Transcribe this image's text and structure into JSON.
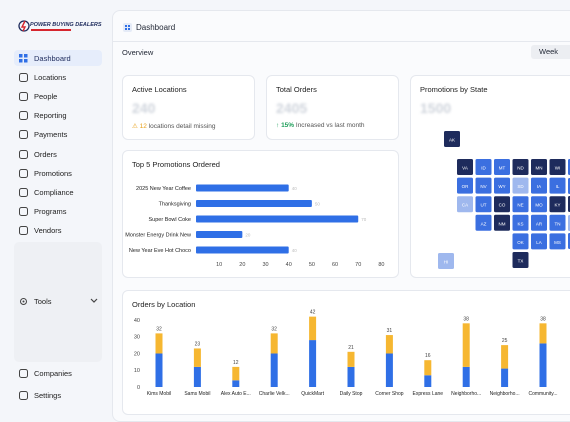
{
  "sidebar": {
    "logo": "POWER BUYING DEALERS",
    "nav": [
      "Dashboard",
      "Locations",
      "People",
      "Reporting",
      "Payments",
      "Orders",
      "Promotions",
      "Compliance",
      "Programs",
      "Vendors"
    ],
    "tools": "Tools",
    "footer": [
      "Companies",
      "Settings"
    ]
  },
  "header": {
    "title": "Dashboard",
    "section": "Overview",
    "period": "Week"
  },
  "cards": [
    {
      "title": "Active Locations",
      "value": "240",
      "note_value": "12",
      "note": "locations detail missing"
    },
    {
      "title": "Total Orders",
      "value": "2405",
      "note_value": "15%",
      "note": "Increased vs last month"
    }
  ],
  "promotions_by_state": {
    "title": "Promotions by State",
    "value": "1500",
    "tiles": [
      {
        "label": "AK",
        "color": "#1e2b5c"
      },
      {
        "label": "VA",
        "color": "#1e2b5c"
      },
      {
        "label": "ID",
        "color": "#3b6fe0"
      },
      {
        "label": "MT",
        "color": "#3b6fe0"
      },
      {
        "label": "ND",
        "color": "#1e2b5c"
      },
      {
        "label": "MN",
        "color": "#1e2b5c"
      },
      {
        "label": "WI",
        "color": "#1e2b5c"
      },
      {
        "label": "OR",
        "color": "#3b6fe0"
      },
      {
        "label": "NV",
        "color": "#3b6fe0"
      },
      {
        "label": "WY",
        "color": "#3b6fe0"
      },
      {
        "label": "SD",
        "color": "#9fb8ee"
      },
      {
        "label": "IA",
        "color": "#3b6fe0"
      },
      {
        "label": "IL",
        "color": "#3b6fe0"
      },
      {
        "label": "CA",
        "color": "#9fb8ee"
      },
      {
        "label": "UT",
        "color": "#3b6fe0"
      },
      {
        "label": "CO",
        "color": "#1e2b5c"
      },
      {
        "label": "NE",
        "color": "#3b6fe0"
      },
      {
        "label": "MO",
        "color": "#3b6fe0"
      },
      {
        "label": "KY",
        "color": "#1e2b5c"
      },
      {
        "label": "AZ",
        "color": "#3b6fe0"
      },
      {
        "label": "NM",
        "color": "#1e2b5c"
      },
      {
        "label": "KS",
        "color": "#3b6fe0"
      },
      {
        "label": "AR",
        "color": "#3b6fe0"
      },
      {
        "label": "TN",
        "color": "#3b6fe0"
      },
      {
        "label": "OK",
        "color": "#3b6fe0"
      },
      {
        "label": "LA",
        "color": "#3b6fe0"
      },
      {
        "label": "MS",
        "color": "#3b6fe0"
      },
      {
        "label": "HI",
        "color": "#9fb8ee"
      },
      {
        "label": "TX",
        "color": "#1e2b5c"
      }
    ]
  },
  "top_promotions": {
    "type": "bar",
    "orientation": "horizontal",
    "title": "Top 5 Promotions Ordered",
    "categories": [
      "2025 New Year Coffee",
      "Thanksgiving",
      "Super Bowl Coke",
      "Monster Energy Drink New",
      "New Year Eve Hot Choco"
    ],
    "values": [
      40,
      50,
      70,
      20,
      40
    ],
    "xlim": [
      0,
      85
    ],
    "xticks": [
      10,
      20,
      30,
      40,
      50,
      60,
      70,
      80
    ],
    "color": "#2f6fe6"
  },
  "orders_by_location": {
    "type": "bar",
    "stacked": true,
    "title": "Orders by Location",
    "categories": [
      "Kims Mobil",
      "Sams Mobil",
      "Alex Auto E...",
      "Charlie Velk...",
      "QuickMart",
      "Daily Stop",
      "Corner Shop",
      "Express Lane",
      "Neighborho...",
      "Neighborho...",
      "Community..."
    ],
    "series": [
      {
        "color": "#2f6fe6",
        "values": [
          20,
          12,
          4,
          20,
          28,
          12,
          20,
          7,
          12,
          11,
          26
        ]
      },
      {
        "color": "#f6b731",
        "values": [
          12,
          11,
          8,
          12,
          14,
          9,
          11,
          9,
          26,
          14,
          12
        ]
      }
    ],
    "totals": [
      32,
      23,
      12,
      32,
      42,
      21,
      31,
      16,
      38,
      25,
      38
    ],
    "ylim": [
      0,
      45
    ],
    "yticks": [
      0,
      10,
      20,
      30,
      40
    ]
  }
}
